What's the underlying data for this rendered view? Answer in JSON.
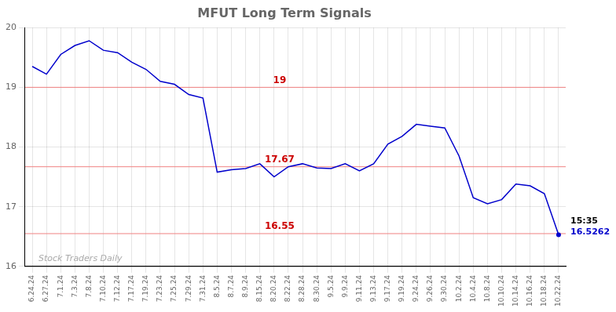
{
  "chart_data": {
    "type": "line",
    "title": "MFUT Long Term Signals",
    "categories": [
      "6.24.24",
      "6.27.24",
      "7.1.24",
      "7.3.24",
      "7.8.24",
      "7.10.24",
      "7.12.24",
      "7.17.24",
      "7.19.24",
      "7.23.24",
      "7.25.24",
      "7.29.24",
      "7.31.24",
      "8.5.24",
      "8.7.24",
      "8.9.24",
      "8.15.24",
      "8.20.24",
      "8.22.24",
      "8.28.24",
      "8.30.24",
      "9.5.24",
      "9.9.24",
      "9.11.24",
      "9.13.24",
      "9.17.24",
      "9.19.24",
      "9.24.24",
      "9.26.24",
      "9.30.24",
      "10.2.24",
      "10.4.24",
      "10.8.24",
      "10.10.24",
      "10.14.24",
      "10.16.24",
      "10.18.24",
      "10.22.24"
    ],
    "values": [
      19.35,
      19.22,
      19.55,
      19.7,
      19.78,
      19.62,
      19.58,
      19.42,
      19.3,
      19.1,
      19.05,
      18.88,
      18.82,
      17.58,
      17.62,
      17.64,
      17.72,
      17.5,
      17.67,
      17.72,
      17.65,
      17.64,
      17.72,
      17.6,
      17.72,
      18.05,
      18.18,
      18.38,
      18.35,
      18.32,
      17.85,
      17.15,
      17.05,
      17.12,
      17.38,
      17.35,
      17.22,
      16.53
    ],
    "color": "#0000cc",
    "ylim": [
      16.0,
      20.0
    ],
    "yticks": [
      16,
      17,
      18,
      19,
      20
    ],
    "grid": true,
    "reference_lines": [
      {
        "value": 19.0,
        "label": "19",
        "color": "#f08080"
      },
      {
        "value": 17.67,
        "label": "17.67",
        "color": "#f08080"
      },
      {
        "value": 16.55,
        "label": "16.55",
        "color": "#f08080"
      }
    ],
    "watermark": "Stock Traders Daily",
    "end_labels": [
      "15:35",
      "16.5262"
    ]
  }
}
